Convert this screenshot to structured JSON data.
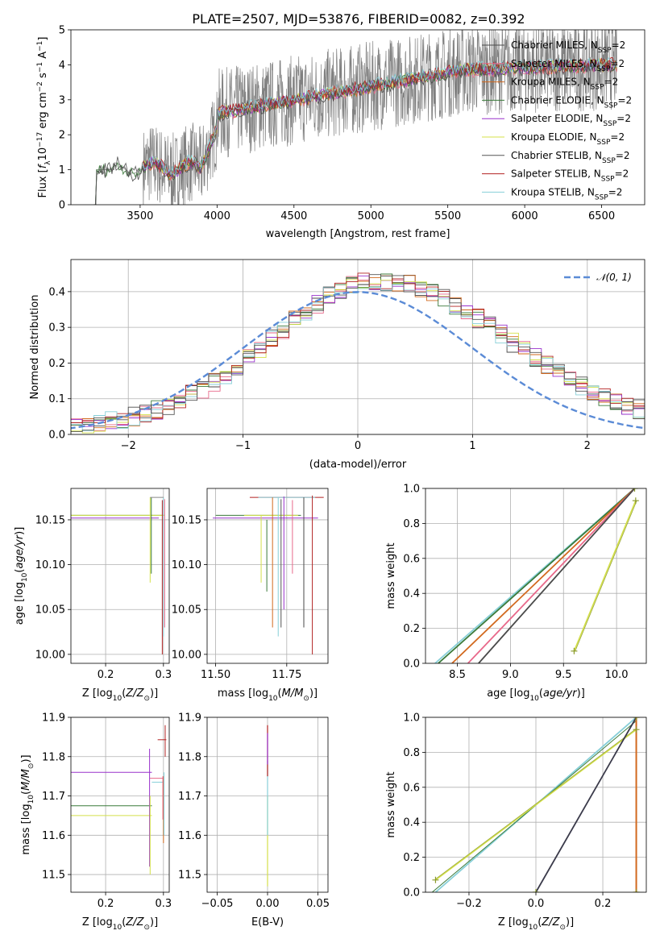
{
  "figure": {
    "title": "PLATE=2507, MJD=53876, FIBERID=0082, z=0.392"
  },
  "legend_models": [
    {
      "label": "Chabrier MILES, N_SSP=2",
      "color": "#4a4a4a"
    },
    {
      "label": "Salpeter MILES, N_SSP=2",
      "color": "#e8688a"
    },
    {
      "label": "Kroupa MILES, N_SSP=2",
      "color": "#d2691e"
    },
    {
      "label": "Chabrier ELODIE, N_SSP=2",
      "color": "#3a7a3a"
    },
    {
      "label": "Salpeter ELODIE, N_SSP=2",
      "color": "#9932cc"
    },
    {
      "label": "Kroupa ELODIE, N_SSP=2",
      "color": "#d4e04a"
    },
    {
      "label": "Chabrier STELIB, N_SSP=2",
      "color": "#555555"
    },
    {
      "label": "Salpeter STELIB, N_SSP=2",
      "color": "#b22222"
    },
    {
      "label": "Kroupa STELIB, N_SSP=2",
      "color": "#87cfd8"
    }
  ],
  "chart_data": [
    {
      "id": "spectrum",
      "type": "line",
      "xlabel": "wavelength [Angstrom, rest frame]",
      "ylabel": "Flux [f_λ 10^-17 erg cm^-2 s^-1 A^-1]",
      "xlim": [
        3050,
        6780
      ],
      "ylim": [
        0,
        5
      ],
      "xticks": [
        3500,
        4000,
        4500,
        5000,
        5500,
        6000,
        6500
      ],
      "yticks": [
        0,
        1,
        2,
        3,
        4,
        5
      ],
      "data_range": [
        3200,
        6600
      ],
      "noisy_data_start": 3520,
      "legend_position": "upper right",
      "grid": false
    },
    {
      "id": "residuals",
      "type": "step",
      "xlabel": "(data-model)/error",
      "ylabel": "Normed distribution",
      "xlim": [
        -2.5,
        2.5
      ],
      "ylim": [
        0,
        0.49
      ],
      "xticks": [
        -2,
        -1,
        0,
        1,
        2
      ],
      "yticks": [
        0.0,
        0.1,
        0.2,
        0.3,
        0.4
      ],
      "gaussian_label": "𝒩(0, 1)",
      "gaussian_color": "#5b8bd6",
      "bin_width": 0.1,
      "grid": true
    },
    {
      "id": "age_vs_Z",
      "type": "errorbar",
      "xlabel": "Z [log10(Z/Z⊙)]",
      "ylabel": "age [log10(age/yr)]",
      "xlim": [
        0.14,
        0.31
      ],
      "ylim": [
        9.99,
        10.185
      ],
      "xticks": [
        0.2,
        0.3
      ],
      "yticks": [
        10.0,
        10.05,
        10.1,
        10.15
      ],
      "grid": true
    },
    {
      "id": "age_vs_mass",
      "type": "errorbar",
      "xlabel": "mass [log10(M/M⊙)]",
      "ylabel": "",
      "xlim": [
        11.47,
        11.895
      ],
      "ylim": [
        9.99,
        10.185
      ],
      "xticks": [
        11.5,
        11.75
      ],
      "yticks": [
        10.0,
        10.05,
        10.1,
        10.15
      ],
      "grid": true
    },
    {
      "id": "massweight_vs_age",
      "type": "line",
      "xlabel": "age [log10(age/yr)]",
      "ylabel": "mass weight",
      "xlim": [
        8.2,
        10.28
      ],
      "ylim": [
        0,
        1
      ],
      "xticks": [
        8.5,
        9.0,
        9.5,
        10.0
      ],
      "yticks": [
        0.0,
        0.2,
        0.4,
        0.6,
        0.8,
        1.0
      ],
      "grid": true
    },
    {
      "id": "mass_vs_Z",
      "type": "errorbar",
      "xlabel": "Z [log10(Z/Z⊙)]",
      "ylabel": "mass [log10(M/M⊙)]",
      "xlim": [
        0.14,
        0.31
      ],
      "ylim": [
        11.455,
        11.9
      ],
      "xticks": [
        0.2,
        0.3
      ],
      "yticks": [
        11.5,
        11.6,
        11.7,
        11.8,
        11.9
      ],
      "grid": true
    },
    {
      "id": "mass_vs_ebv",
      "type": "errorbar",
      "xlabel": "E(B-V)",
      "ylabel": "",
      "xlim": [
        -0.06,
        0.06
      ],
      "ylim": [
        11.455,
        11.9
      ],
      "xticks": [
        -0.05,
        0.0,
        0.05
      ],
      "yticks": [
        11.5,
        11.6,
        11.7,
        11.8,
        11.9
      ],
      "grid": true
    },
    {
      "id": "massweight_vs_Z",
      "type": "line",
      "xlabel": "Z [log10(Z/Z⊙)]",
      "ylabel": "mass weight",
      "xlim": [
        -0.33,
        0.33
      ],
      "ylim": [
        0,
        1
      ],
      "xticks": [
        -0.2,
        0.0,
        0.2
      ],
      "yticks": [
        0.0,
        0.2,
        0.4,
        0.6,
        0.8,
        1.0
      ],
      "grid": true
    }
  ]
}
